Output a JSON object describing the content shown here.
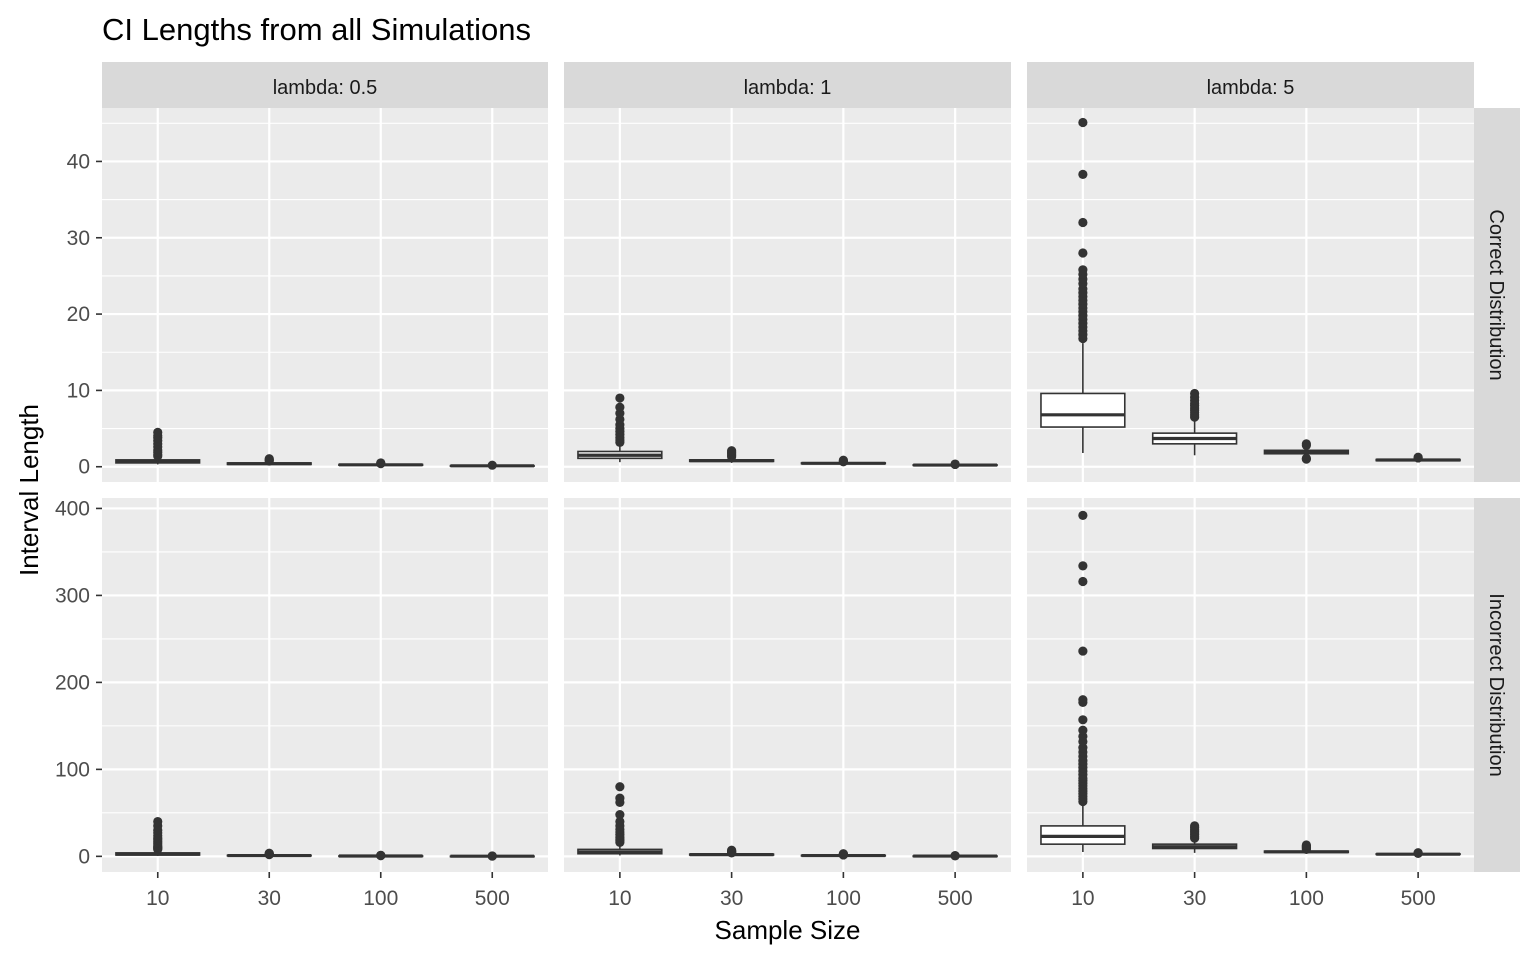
{
  "chart_data": {
    "type": "boxplot",
    "title": "CI Lengths from all Simulations",
    "xlabel": "Sample Size",
    "ylabel": "Interval Length",
    "categories": [
      "10",
      "30",
      "100",
      "500"
    ],
    "facet_columns": [
      "lambda: 0.5",
      "lambda: 1",
      "lambda: 5"
    ],
    "facet_rows": [
      "Correct Distribution",
      "Incorrect Distribution"
    ],
    "grid": true,
    "rows": [
      {
        "label": "Correct Distribution",
        "ylim": [
          -2,
          47
        ],
        "yticks": [
          0,
          10,
          20,
          30,
          40
        ],
        "panels": [
          {
            "facet": "lambda: 0.5",
            "boxes": [
              {
                "x": "10",
                "min": 0.3,
                "q1": 0.5,
                "median": 0.7,
                "q3": 0.9,
                "max": 1.3,
                "outliers": [
                  1.4,
                  1.6,
                  1.9,
                  2.2,
                  2.6,
                  3.0,
                  3.4,
                  3.8,
                  4.1,
                  4.5
                ]
              },
              {
                "x": "30",
                "min": 0.2,
                "q1": 0.3,
                "median": 0.4,
                "q3": 0.5,
                "max": 0.7,
                "outliers": [
                  0.75,
                  0.85,
                  0.95,
                  1.05
                ]
              },
              {
                "x": "100",
                "min": 0.1,
                "q1": 0.2,
                "median": 0.25,
                "q3": 0.3,
                "max": 0.35,
                "outliers": [
                  0.4,
                  0.5
                ]
              },
              {
                "x": "500",
                "min": 0.05,
                "q1": 0.1,
                "median": 0.12,
                "q3": 0.14,
                "max": 0.16,
                "outliers": [
                  0.2
                ]
              }
            ]
          },
          {
            "facet": "lambda: 1",
            "boxes": [
              {
                "x": "10",
                "min": 0.6,
                "q1": 1.1,
                "median": 1.5,
                "q3": 2.0,
                "max": 3.0,
                "outliers": [
                  3.2,
                  3.5,
                  3.8,
                  4.2,
                  4.6,
                  5.0,
                  5.5,
                  6.2,
                  7.0,
                  7.8,
                  9.0
                ]
              },
              {
                "x": "30",
                "min": 0.5,
                "q1": 0.7,
                "median": 0.8,
                "q3": 0.9,
                "max": 1.2,
                "outliers": [
                  1.3,
                  1.5,
                  1.7,
                  1.9,
                  2.1
                ]
              },
              {
                "x": "100",
                "min": 0.3,
                "q1": 0.4,
                "median": 0.45,
                "q3": 0.5,
                "max": 0.6,
                "outliers": [
                  0.65,
                  0.75,
                  0.85
                ]
              },
              {
                "x": "500",
                "min": 0.15,
                "q1": 0.2,
                "median": 0.22,
                "q3": 0.24,
                "max": 0.28,
                "outliers": [
                  0.3,
                  0.35
                ]
              }
            ]
          },
          {
            "facet": "lambda: 5",
            "boxes": [
              {
                "x": "10",
                "min": 1.8,
                "q1": 5.2,
                "median": 6.8,
                "q3": 9.6,
                "max": 16.2,
                "outliers": [
                  16.8,
                  17.3,
                  17.8,
                  18.3,
                  18.8,
                  19.3,
                  19.8,
                  20.3,
                  20.8,
                  21.3,
                  21.8,
                  22.3,
                  22.8,
                  23.3,
                  24.0,
                  24.6,
                  25.2,
                  25.8,
                  28.0,
                  32.0,
                  38.3,
                  45.1
                ]
              },
              {
                "x": "30",
                "min": 1.5,
                "q1": 3.0,
                "median": 3.7,
                "q3": 4.4,
                "max": 6.2,
                "outliers": [
                  6.5,
                  6.8,
                  7.1,
                  7.4,
                  7.7,
                  8.0,
                  8.3,
                  8.7,
                  9.1,
                  9.6
                ]
              },
              {
                "x": "100",
                "min": 1.2,
                "q1": 1.7,
                "median": 1.95,
                "q3": 2.15,
                "max": 2.6,
                "outliers": [
                  1.0,
                  1.1,
                  2.8,
                  3.0
                ]
              },
              {
                "x": "500",
                "min": 0.7,
                "q1": 0.8,
                "median": 0.88,
                "q3": 0.95,
                "max": 1.05,
                "outliers": [
                  1.15,
                  1.25
                ]
              }
            ]
          }
        ]
      },
      {
        "label": "Incorrect Distribution",
        "ylim": [
          -18,
          412
        ],
        "yticks": [
          0,
          100,
          200,
          300,
          400
        ],
        "panels": [
          {
            "facet": "lambda: 0.5",
            "boxes": [
              {
                "x": "10",
                "min": 0.5,
                "q1": 1.5,
                "median": 2.5,
                "q3": 4.0,
                "max": 7.5,
                "outliers": [
                  8,
                  9,
                  10,
                  11,
                  13,
                  15,
                  17,
                  19,
                  21,
                  24,
                  27,
                  30,
                  35,
                  40
                ]
              },
              {
                "x": "30",
                "min": 0.3,
                "q1": 0.6,
                "median": 0.9,
                "q3": 1.2,
                "max": 1.8,
                "outliers": [
                  2.0,
                  2.4,
                  2.8,
                  3.2,
                  3.6
                ]
              },
              {
                "x": "100",
                "min": 0.2,
                "q1": 0.3,
                "median": 0.4,
                "q3": 0.5,
                "max": 0.7,
                "outliers": [
                  0.8,
                  1.0,
                  1.2
                ]
              },
              {
                "x": "500",
                "min": 0.1,
                "q1": 0.15,
                "median": 0.18,
                "q3": 0.2,
                "max": 0.25,
                "outliers": [
                  0.3,
                  0.4
                ]
              }
            ]
          },
          {
            "facet": "lambda: 1",
            "boxes": [
              {
                "x": "10",
                "min": 1.0,
                "q1": 3.0,
                "median": 5.0,
                "q3": 8.0,
                "max": 15.0,
                "outliers": [
                  16,
                  18,
                  20,
                  22,
                  25,
                  28,
                  31,
                  35,
                  40,
                  48,
                  62,
                  67,
                  80
                ]
              },
              {
                "x": "30",
                "min": 0.8,
                "q1": 1.5,
                "median": 2.0,
                "q3": 2.5,
                "max": 3.5,
                "outliers": [
                  4.0,
                  4.5,
                  5.0,
                  5.5,
                  6.0,
                  7.0
                ]
              },
              {
                "x": "100",
                "min": 0.4,
                "q1": 0.7,
                "median": 0.9,
                "q3": 1.1,
                "max": 1.4,
                "outliers": [
                  1.6,
                  2.0,
                  2.5,
                  3.0
                ]
              },
              {
                "x": "500",
                "min": 0.2,
                "q1": 0.3,
                "median": 0.35,
                "q3": 0.4,
                "max": 0.5,
                "outliers": [
                  0.6,
                  0.8
                ]
              }
            ]
          },
          {
            "facet": "lambda: 5",
            "boxes": [
              {
                "x": "10",
                "min": 5,
                "q1": 14,
                "median": 23,
                "q3": 35,
                "max": 60,
                "outliers": [
                  63,
                  66,
                  69,
                  72,
                  75,
                  78,
                  81,
                  84,
                  87,
                  90,
                  94,
                  98,
                  102,
                  106,
                  110,
                  115,
                  120,
                  125,
                  132,
                  138,
                  145,
                  157,
                  177,
                  180,
                  236,
                  316,
                  334,
                  392
                ]
              },
              {
                "x": "30",
                "min": 4,
                "q1": 9,
                "median": 11,
                "q3": 14,
                "max": 20,
                "outliers": [
                  21,
                  23,
                  25,
                  27,
                  29,
                  31,
                  33,
                  35
                ]
              },
              {
                "x": "100",
                "min": 3,
                "q1": 4.5,
                "median": 5.2,
                "q3": 6.0,
                "max": 7.5,
                "outliers": [
                  8,
                  9,
                  10,
                  11,
                  12,
                  13
                ]
              },
              {
                "x": "500",
                "min": 1.8,
                "q1": 2.2,
                "median": 2.5,
                "q3": 2.8,
                "max": 3.2,
                "outliers": [
                  3.4,
                  3.8,
                  4.2
                ]
              }
            ]
          }
        ]
      }
    ]
  }
}
